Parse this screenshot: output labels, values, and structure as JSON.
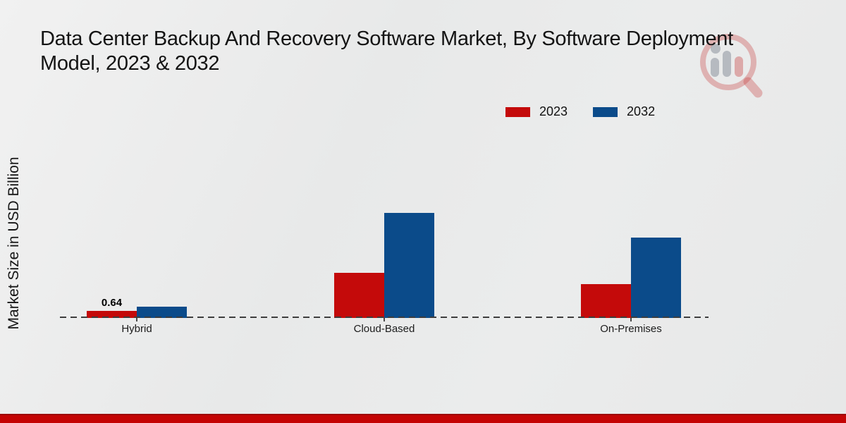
{
  "title": {
    "full": "Data Center Backup And Recovery Software Market, By Software Deployment Model, 2023 & 2032",
    "line1": "Data Center Backup And Recovery Software Market, By Software Deployment",
    "line2": "Model, 2023 & 2032"
  },
  "y_axis_label": "Market Size in USD Billion",
  "legend": {
    "items": [
      {
        "label": "2023",
        "color": "#c40a0a"
      },
      {
        "label": "2032",
        "color": "#0b4b8a"
      }
    ]
  },
  "chart_data": {
    "type": "bar",
    "title": "Data Center Backup And Recovery Software Market, By Software Deployment Model, 2023 & 2032",
    "categories": [
      "Hybrid",
      "Cloud-Based",
      "On-Premises"
    ],
    "series": [
      {
        "name": "2023",
        "color": "#c40a0a",
        "values": [
          0.64,
          4.1,
          3.07
        ]
      },
      {
        "name": "2032",
        "color": "#0b4b8a",
        "values": [
          1.02,
          9.55,
          7.3
        ]
      }
    ],
    "xlabel": "",
    "ylabel": "Market Size in USD Billion",
    "ylim": [
      0,
      10
    ],
    "grid": false,
    "axis_line_style": "dashed-baseline-only",
    "legend_position": "top-right",
    "value_labels": [
      {
        "series": "2023",
        "category": "Hybrid",
        "text": "0.64"
      }
    ]
  },
  "colors": {
    "accent_red": "#c40a0a",
    "accent_blue": "#0b4b8a",
    "background": "#eaebeb",
    "bottom_band": "#c40404",
    "baseline": "#3d3d3d"
  },
  "icons": {
    "watermark": "mrfr-magnifier-chart-logo"
  }
}
